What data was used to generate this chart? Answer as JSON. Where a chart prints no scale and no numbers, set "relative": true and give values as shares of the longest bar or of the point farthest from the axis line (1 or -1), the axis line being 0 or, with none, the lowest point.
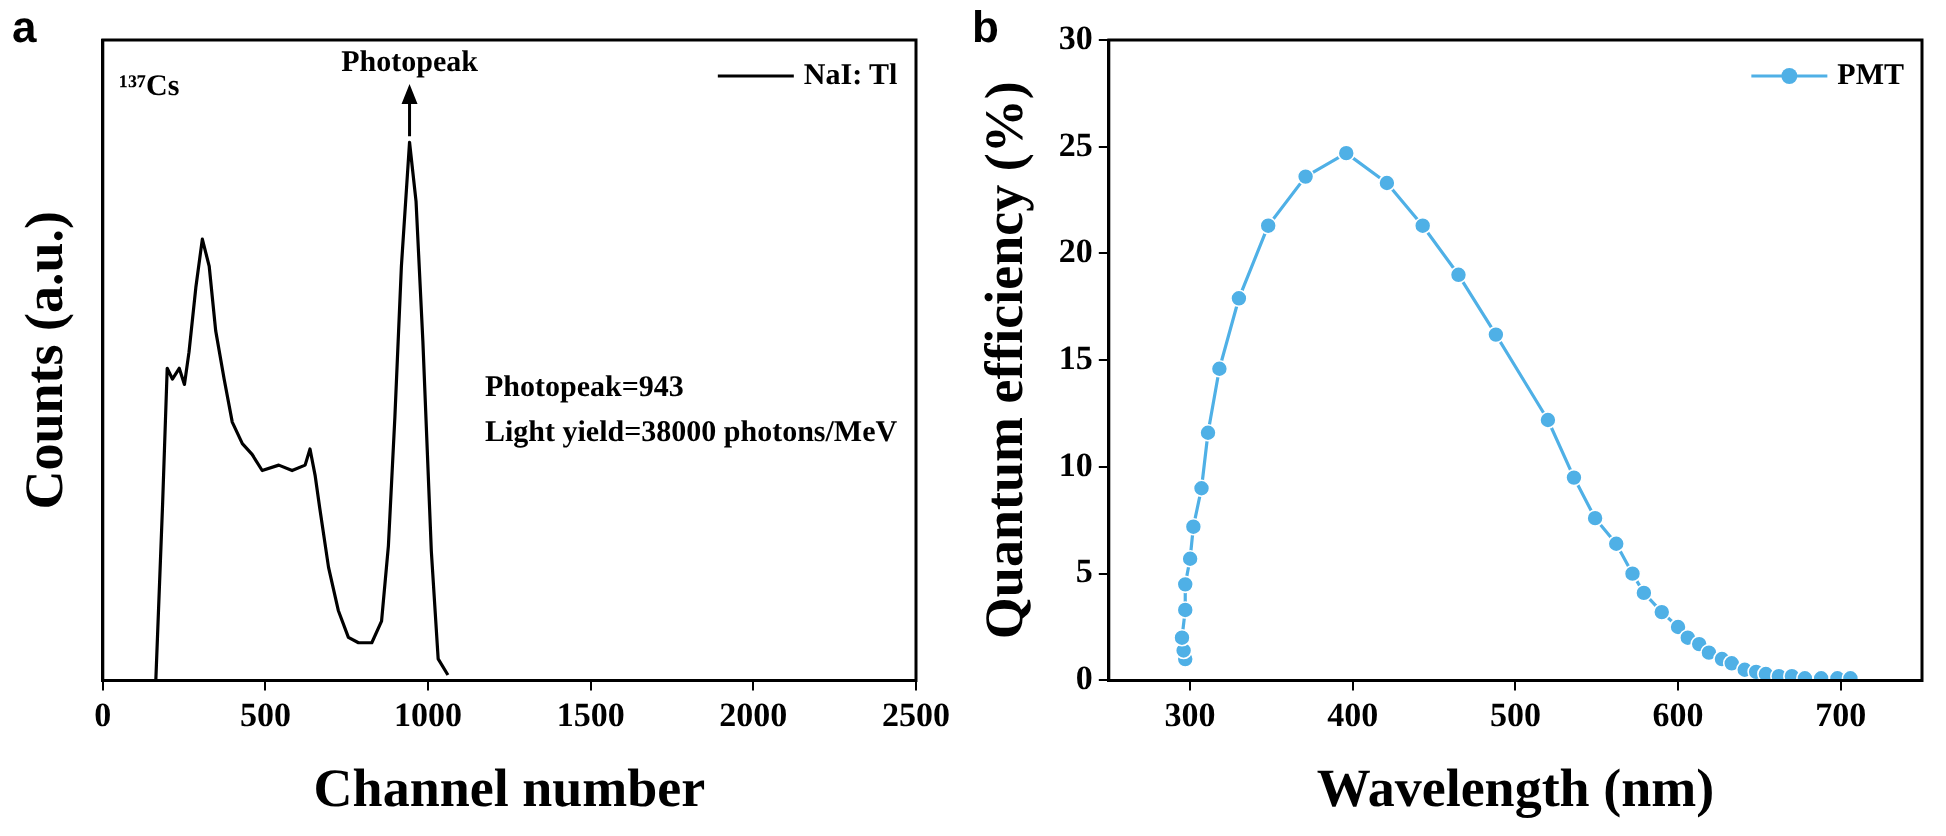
{
  "chart_data": [
    {
      "type": "line",
      "title": "a",
      "xlabel": "Channel number",
      "ylabel": "Counts (a.u.)",
      "relative": true,
      "xlim": [
        0,
        2500
      ],
      "xticks": [
        0,
        500,
        1000,
        1500,
        2000,
        2500
      ],
      "legend": "top right",
      "grid": false,
      "marker": "none",
      "annotations": [
        "¹³⁷Cs",
        {
          "text": "Photopeak",
          "x": 943,
          "y": 1
        },
        "Photopeak=943",
        "Light yield=38000 photons/MeV"
      ],
      "series": [
        {
          "name": "NaI: Tl",
          "color": "#000000",
          "x": [
            163,
            184,
            198,
            214,
            235,
            251,
            265,
            286,
            306,
            327,
            347,
            373,
            398,
            429,
            459,
            490,
            541,
            582,
            622,
            637,
            653,
            667,
            694,
            724,
            755,
            786,
            827,
            857,
            878,
            898,
            918,
            943,
            963,
            984,
            1010,
            1031,
            1061
          ],
          "values": [
            0,
            0.33,
            0.58,
            0.56,
            0.58,
            0.55,
            0.61,
            0.73,
            0.82,
            0.77,
            0.65,
            0.56,
            0.48,
            0.44,
            0.42,
            0.39,
            0.4,
            0.39,
            0.4,
            0.43,
            0.38,
            0.32,
            0.21,
            0.13,
            0.08,
            0.07,
            0.07,
            0.11,
            0.25,
            0.49,
            0.77,
            1,
            0.89,
            0.63,
            0.24,
            0.04,
            0.01
          ]
        }
      ]
    },
    {
      "type": "line",
      "title": "b",
      "xlabel": "Wavelength (nm)",
      "ylabel": "Quantum efficiency (%)",
      "xlim": [
        250,
        750
      ],
      "xticks": [
        300,
        400,
        500,
        600,
        700
      ],
      "ylim": [
        0,
        30
      ],
      "yticks": [
        0,
        5,
        10,
        15,
        20,
        25,
        30
      ],
      "legend": "top right",
      "grid": false,
      "marker": "circle",
      "series": [
        {
          "name": "PMT",
          "color": "#4fb0e6",
          "x": [
            297,
            296,
            295,
            297,
            297,
            300,
            302,
            307,
            311,
            318,
            330,
            348,
            371,
            396,
            421,
            443,
            465,
            488,
            520,
            536,
            549,
            562,
            572,
            579,
            590,
            600,
            606,
            613,
            619,
            627,
            633,
            641,
            648,
            654,
            662,
            670,
            678,
            688,
            698,
            706
          ],
          "values": [
            1.0,
            1.4,
            2.0,
            3.3,
            4.5,
            5.7,
            7.2,
            9.0,
            11.6,
            14.6,
            17.9,
            21.3,
            23.6,
            24.7,
            23.3,
            21.3,
            19.0,
            16.2,
            12.2,
            9.5,
            7.6,
            6.4,
            5.0,
            4.1,
            3.2,
            2.5,
            2.0,
            1.7,
            1.3,
            1.0,
            0.8,
            0.5,
            0.4,
            0.3,
            0.2,
            0.2,
            0.1,
            0.1,
            0.1,
            0.1
          ]
        }
      ]
    }
  ]
}
